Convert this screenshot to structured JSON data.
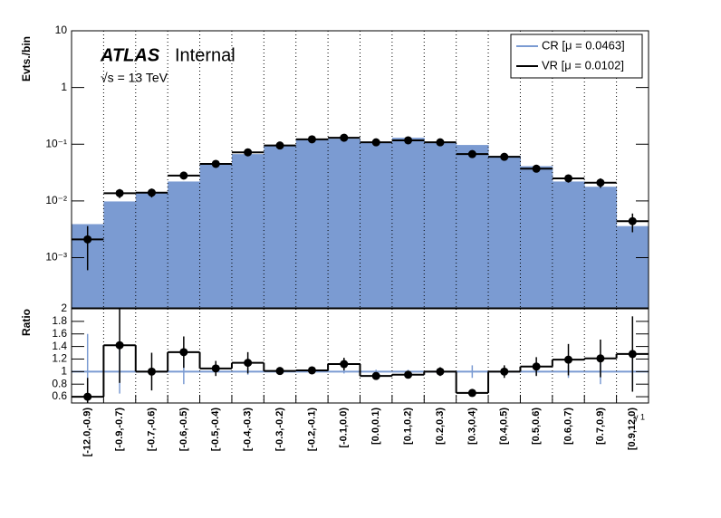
{
  "chart_data": [
    {
      "type": "hist",
      "ylabel": "Evts./bin",
      "log_scale": true,
      "annotations": {
        "experiment": "ATLAS",
        "status": "Internal",
        "energy": "√s = 13 TeV"
      },
      "legend": "top-right",
      "ylim": [
        0.00013,
        10
      ],
      "yticks": [
        {
          "value": 0.001,
          "label": "10⁻³"
        },
        {
          "value": 0.01,
          "label": "10⁻²"
        },
        {
          "value": 0.1,
          "label": "10⁻¹"
        },
        1,
        10
      ],
      "series": [
        {
          "name": "CR [μ = 0.0463]",
          "color": "#7b9bd2",
          "values": [
            0.0039,
            0.0098,
            0.0142,
            0.022,
            0.0445,
            0.067,
            0.095,
            0.12,
            0.125,
            0.108,
            0.13,
            0.108,
            0.097,
            0.062,
            0.041,
            0.022,
            0.0178,
            0.0036
          ]
        },
        {
          "name": "VR [μ = 0.0102]",
          "color": "#000000",
          "values": [
            0.0021,
            0.0137,
            0.014,
            0.028,
            0.045,
            0.072,
            0.095,
            0.122,
            0.13,
            0.108,
            0.117,
            0.108,
            0.067,
            0.06,
            0.037,
            0.025,
            0.021,
            0.0044
          ],
          "errors": [
            0.0015,
            0.0025,
            0.0025,
            0.004,
            0.005,
            0.007,
            0.006,
            0.008,
            0.009,
            0.007,
            0.008,
            0.007,
            0.006,
            0.006,
            0.005,
            0.004,
            0.004,
            0.0016
          ]
        }
      ]
    },
    {
      "type": "ratio",
      "ylabel": "Ratio",
      "xlabel": "γ 1",
      "categories": [
        "[-12.0,-0.9)",
        "[-0.9,-0.7)",
        "[-0.7,-0.6)",
        "[-0.6,-0.5)",
        "[-0.5,-0.4)",
        "[-0.4,-0.3)",
        "[-0.3,-0.2)",
        "[-0.2,-0.1)",
        "[-0.1,0.0)",
        "[0.0,0.1)",
        "[0.1,0.2)",
        "[0.2,0.3)",
        "[0.3,0.4)",
        "[0.4,0.5)",
        "[0.5,0.6)",
        "[0.6,0.7)",
        "[0.7,0.9)",
        "[0.9,12.0)"
      ],
      "ylim": [
        0.5,
        2
      ],
      "yticks": [
        0.6,
        0.8,
        1,
        1.2,
        1.4,
        1.6,
        1.8,
        2
      ],
      "series": [
        {
          "color": "#7b9bd2",
          "values": [
            1,
            1,
            1,
            1,
            1,
            1,
            1,
            1,
            1,
            1,
            1,
            1,
            1,
            1,
            1,
            1,
            1,
            1
          ],
          "errors": [
            0.6,
            0.35,
            0.05,
            0.2,
            0.05,
            0.05,
            0.03,
            0.03,
            0.03,
            0.03,
            0.03,
            0.03,
            0.1,
            0.05,
            0.05,
            0.1,
            0.2,
            0.25
          ]
        },
        {
          "color": "#000000",
          "values": [
            0.6,
            1.42,
            1.0,
            1.31,
            1.05,
            1.14,
            1.01,
            1.02,
            1.12,
            0.93,
            0.95,
            1.0,
            0.66,
            1.0,
            1.08,
            1.19,
            1.21,
            1.28
          ],
          "errors": [
            0.3,
            0.6,
            0.3,
            0.25,
            0.12,
            0.17,
            0.06,
            0.06,
            0.1,
            0.06,
            0.06,
            0.07,
            0.04,
            0.1,
            0.15,
            0.25,
            0.3,
            0.6
          ]
        }
      ]
    }
  ]
}
